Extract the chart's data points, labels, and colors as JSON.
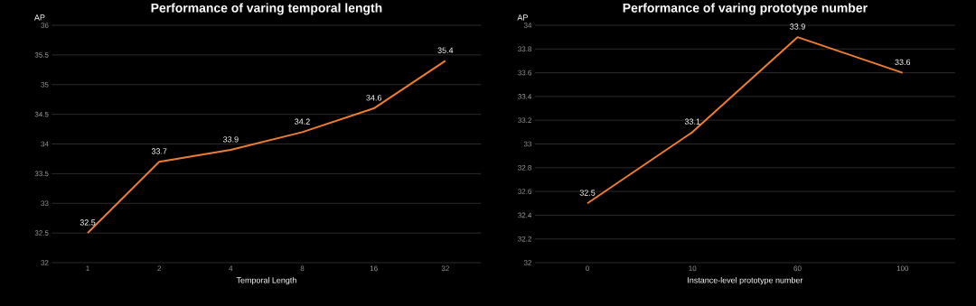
{
  "chart_data": [
    {
      "type": "line",
      "title": "Performance of varing temporal length",
      "xlabel": "Temporal Length",
      "ylabel": "AP",
      "categories": [
        "1",
        "2",
        "4",
        "8",
        "16",
        "32"
      ],
      "series": [
        {
          "color": "#ed7d31",
          "values": [
            32.5,
            33.7,
            33.9,
            34.2,
            34.6,
            35.4
          ]
        }
      ],
      "ylim": [
        32,
        36
      ],
      "yticks": [
        32,
        32.5,
        33,
        33.5,
        34,
        34.5,
        35,
        35.5,
        36
      ],
      "grid": "y",
      "data_labels": true
    },
    {
      "type": "line",
      "title": "Performance of varing prototype number",
      "xlabel": "Instance-level prototype number",
      "ylabel": "AP",
      "categories": [
        "0",
        "10",
        "60",
        "100"
      ],
      "series": [
        {
          "color": "#ed7d31",
          "values": [
            32.5,
            33.1,
            33.9,
            33.6
          ]
        }
      ],
      "ylim": [
        32,
        34
      ],
      "yticks": [
        32,
        32.2,
        32.4,
        32.6,
        32.8,
        33,
        33.2,
        33.4,
        33.6,
        33.8,
        34
      ],
      "grid": "y",
      "data_labels": true
    }
  ]
}
